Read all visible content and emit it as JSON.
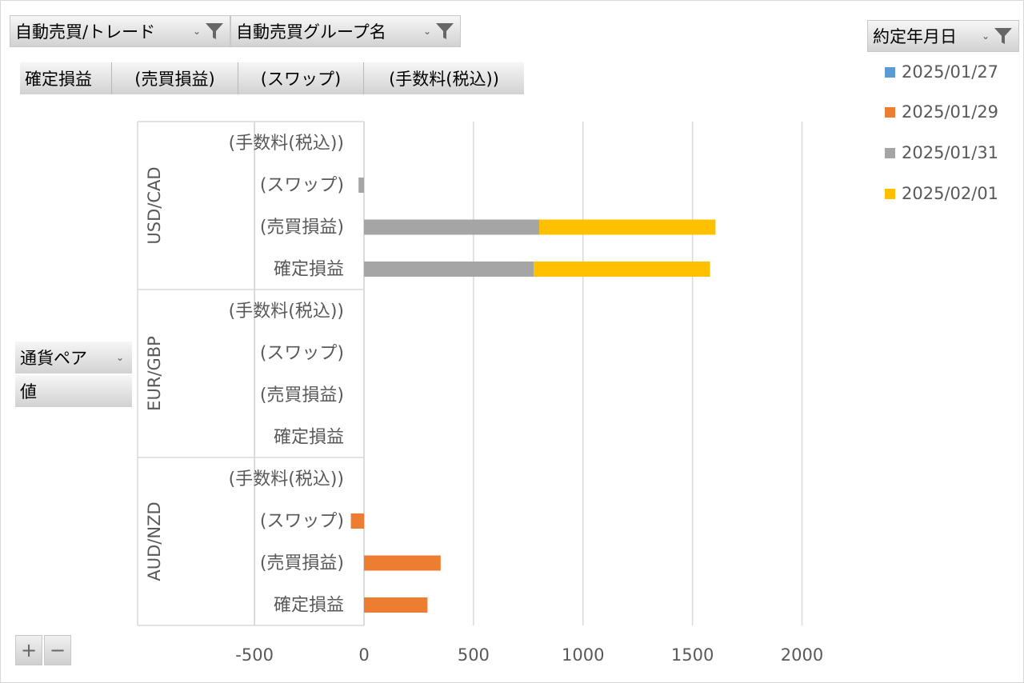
{
  "filters": {
    "trade": "自動売買/トレード",
    "group": "自動売買グループ名",
    "date": "約定年月日"
  },
  "value_fields": [
    "確定損益",
    "(売買損益)",
    "(スワップ)",
    "(手数料(税込))"
  ],
  "row_field": {
    "pair_label": "通貨ペア",
    "value_label": "値"
  },
  "zoom": {
    "plus": "+",
    "minus": "−"
  },
  "colors": {
    "2025/01/27": "#5b9bd5",
    "2025/01/29": "#ed7d31",
    "2025/01/31": "#a5a5a5",
    "2025/02/01": "#ffc000"
  },
  "chart_data": {
    "type": "bar",
    "orientation": "horizontal",
    "stacked": true,
    "groups": [
      {
        "name": "USD/CAD",
        "categories": [
          "(手数料(税込))",
          "(スワップ)",
          "(売買損益)",
          "確定損益"
        ]
      },
      {
        "name": "EUR/GBP",
        "categories": [
          "(手数料(税込))",
          "(スワップ)",
          "(売買損益)",
          "確定損益"
        ]
      },
      {
        "name": "AUD/NZD",
        "categories": [
          "(手数料(税込))",
          "(スワップ)",
          "(売買損益)",
          "確定損益"
        ]
      }
    ],
    "series": [
      {
        "name": "2025/01/27",
        "values": [
          0,
          0,
          0,
          0,
          0,
          0,
          0,
          0,
          0,
          0,
          0,
          0
        ]
      },
      {
        "name": "2025/01/29",
        "values": [
          0,
          0,
          0,
          0,
          0,
          0,
          0,
          0,
          0,
          -60,
          350,
          290
        ]
      },
      {
        "name": "2025/01/31",
        "values": [
          0,
          -25,
          800,
          775,
          0,
          0,
          0,
          0,
          0,
          0,
          0,
          0
        ]
      },
      {
        "name": "2025/02/01",
        "values": [
          0,
          0,
          805,
          805,
          0,
          0,
          0,
          0,
          0,
          0,
          0,
          0
        ]
      }
    ],
    "xlim": [
      -500,
      2000
    ],
    "xticks": [
      "-500",
      "0",
      "500",
      "1000",
      "1500",
      "2000"
    ],
    "xtick_values": [
      -500,
      0,
      500,
      1000,
      1500,
      2000
    ],
    "grid": true,
    "legend_position": "right"
  }
}
